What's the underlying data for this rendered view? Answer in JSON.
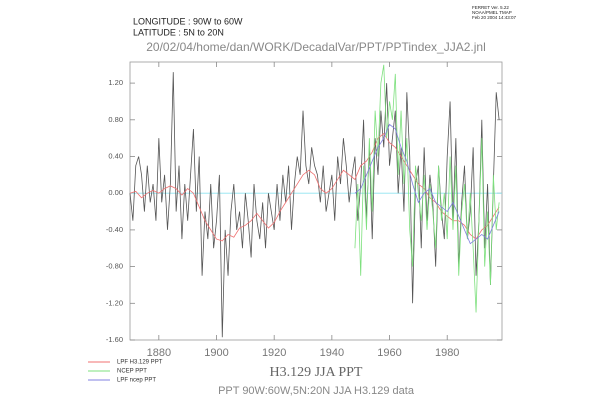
{
  "stamp": [
    "FERRET Ver. 5.22",
    "NOAA/PMEL TMAP",
    "Feb 20 2004 14:43:07"
  ],
  "header": [
    "LONGITUDE : 90W to 60W",
    "LATITUDE : 5N to 20N"
  ],
  "chart_data": {
    "type": "line",
    "subtitle_top": "20/02/04/home/dan/WORK/DecadalVar/PPT/PPTindex_JJA2.jnl",
    "title": "H3.129 JJA PPT",
    "subtitle": "PPT 90W:60W,5N:20N JJA H3.129 data",
    "xlim": [
      1870,
      1999
    ],
    "ylim": [
      -1.6,
      1.43
    ],
    "xticks": [
      1880,
      1900,
      1920,
      1940,
      1960,
      1980
    ],
    "yticks": [
      {
        "value": -1.6,
        "label": "-1.60"
      },
      {
        "value": -1.2,
        "label": "-1.20"
      },
      {
        "value": -0.8,
        "label": "-0.80"
      },
      {
        "value": -0.4,
        "label": "-0.40"
      },
      {
        "value": 0,
        "label": "0.00"
      },
      {
        "value": 0.4,
        "label": "0.40"
      },
      {
        "value": 0.8,
        "label": "0.80"
      },
      {
        "value": 1.2,
        "label": "1.20"
      }
    ],
    "zero_line_color": "#8fe3f0",
    "legend": "bottom-left",
    "series": [
      {
        "color": "#555555",
        "x": [
          1870,
          1871,
          1872,
          1873,
          1874,
          1875,
          1876,
          1877,
          1878,
          1879,
          1880,
          1881,
          1882,
          1883,
          1884,
          1885,
          1886,
          1887,
          1888,
          1889,
          1890,
          1891,
          1892,
          1893,
          1894,
          1895,
          1896,
          1897,
          1898,
          1899,
          1900,
          1901,
          1902,
          1903,
          1904,
          1905,
          1906,
          1907,
          1908,
          1909,
          1910,
          1911,
          1912,
          1913,
          1914,
          1915,
          1916,
          1917,
          1918,
          1919,
          1920,
          1921,
          1922,
          1923,
          1924,
          1925,
          1926,
          1927,
          1928,
          1929,
          1930,
          1931,
          1932,
          1933,
          1934,
          1935,
          1936,
          1937,
          1938,
          1939,
          1940,
          1941,
          1942,
          1943,
          1944,
          1945,
          1946,
          1947,
          1948,
          1949,
          1950,
          1951,
          1952,
          1953,
          1954,
          1955,
          1956,
          1957,
          1958,
          1959,
          1960,
          1961,
          1962,
          1963,
          1964,
          1965,
          1966,
          1967,
          1968,
          1969,
          1970,
          1971,
          1972,
          1973,
          1974,
          1975,
          1976,
          1977,
          1978,
          1979,
          1980,
          1981,
          1982,
          1983,
          1984,
          1985,
          1986,
          1987,
          1988,
          1989,
          1990,
          1991,
          1992,
          1993,
          1994,
          1995,
          1996,
          1997,
          1998
        ],
        "values": [
          0.0,
          -0.3,
          0.3,
          0.4,
          0.2,
          -0.2,
          0.3,
          -0.1,
          0.1,
          -0.3,
          0.6,
          -0.1,
          0.2,
          -0.4,
          0.1,
          1.32,
          -0.2,
          0.3,
          -0.5,
          0.1,
          -0.3,
          0.2,
          0.7,
          -0.2,
          0.4,
          -0.9,
          -0.2,
          -0.5,
          0.1,
          -0.6,
          -0.3,
          0.2,
          -1.57,
          -0.4,
          -0.9,
          -0.2,
          0.1,
          -0.4,
          -0.2,
          -0.6,
          0.0,
          -0.3,
          -0.7,
          0.1,
          -0.3,
          -0.5,
          -0.1,
          -0.6,
          0.0,
          -0.2,
          -0.4,
          0.1,
          -0.3,
          0.2,
          -0.1,
          0.3,
          -0.4,
          0.1,
          0.4,
          0.2,
          0.9,
          0.3,
          0.1,
          0.5,
          0.3,
          0.2,
          -0.1,
          0.3,
          -0.2,
          0.0,
          0.2,
          -0.3,
          0.4,
          0.1,
          0.6,
          0.3,
          -0.1,
          0.2,
          0.4,
          -0.3,
          0.1,
          0.8,
          -0.3,
          0.5,
          -0.5,
          0.6,
          0.2,
          0.9,
          0.5,
          1.2,
          0.3,
          0.6,
          0.9,
          0.0,
          0.5,
          -0.2,
          1.1,
          0.4,
          -1.2,
          0.1,
          0.3,
          -0.6,
          0.5,
          -0.3,
          0.2,
          -0.1,
          -0.8,
          0.3,
          -0.2,
          -0.5,
          0.4,
          1.0,
          -0.3,
          0.6,
          -0.8,
          -0.1,
          0.3,
          -0.5,
          -0.2,
          0.5,
          -0.9,
          -0.3,
          0.8,
          -0.6,
          0.1,
          -1.0,
          0.1,
          1.1,
          0.8
        ]
      },
      {
        "name": "LPF H3.129 PPT",
        "color": "#f07070",
        "x": [
          1870,
          1872,
          1874,
          1876,
          1878,
          1880,
          1882,
          1884,
          1886,
          1888,
          1890,
          1892,
          1894,
          1896,
          1898,
          1900,
          1902,
          1904,
          1906,
          1908,
          1910,
          1912,
          1914,
          1916,
          1918,
          1920,
          1922,
          1924,
          1926,
          1928,
          1930,
          1932,
          1934,
          1936,
          1938,
          1940,
          1942,
          1944,
          1946,
          1948,
          1950,
          1952,
          1954,
          1956,
          1958,
          1960,
          1962,
          1964,
          1966,
          1968,
          1970,
          1972,
          1974,
          1976,
          1978,
          1980,
          1982,
          1984,
          1986,
          1988,
          1990,
          1992,
          1994,
          1996,
          1998
        ],
        "values": [
          0.0,
          0.02,
          -0.05,
          0.0,
          0.03,
          0.0,
          0.05,
          0.08,
          0.05,
          -0.02,
          0.05,
          0.0,
          -0.15,
          -0.3,
          -0.4,
          -0.5,
          -0.52,
          -0.45,
          -0.48,
          -0.38,
          -0.35,
          -0.3,
          -0.22,
          -0.3,
          -0.38,
          -0.32,
          -0.2,
          -0.1,
          0.0,
          0.1,
          0.2,
          0.25,
          0.2,
          0.05,
          0.0,
          0.05,
          0.15,
          0.25,
          0.2,
          0.15,
          0.3,
          0.35,
          0.45,
          0.6,
          0.65,
          0.55,
          0.5,
          0.4,
          0.3,
          0.2,
          0.1,
          0.05,
          -0.05,
          -0.1,
          -0.2,
          -0.25,
          -0.3,
          -0.3,
          -0.35,
          -0.45,
          -0.5,
          -0.4,
          -0.35,
          -0.25,
          -0.15
        ]
      },
      {
        "name": "NCEP PPT",
        "color": "#7ee07e",
        "x": [
          1948,
          1949,
          1950,
          1951,
          1952,
          1953,
          1954,
          1955,
          1956,
          1957,
          1958,
          1959,
          1960,
          1961,
          1962,
          1963,
          1964,
          1965,
          1966,
          1967,
          1968,
          1969,
          1970,
          1971,
          1972,
          1973,
          1974,
          1975,
          1976,
          1977,
          1978,
          1979,
          1980,
          1981,
          1982,
          1983,
          1984,
          1985,
          1986,
          1987,
          1988,
          1989,
          1990,
          1991,
          1992,
          1993,
          1994,
          1995,
          1996,
          1997,
          1998
        ],
        "values": [
          -0.6,
          0.1,
          -0.9,
          0.3,
          -0.4,
          0.6,
          -0.2,
          0.9,
          0.4,
          1.2,
          1.4,
          0.6,
          1.0,
          0.8,
          1.3,
          0.2,
          0.9,
          0.1,
          0.6,
          -0.4,
          -0.8,
          0.3,
          0.0,
          -0.3,
          0.2,
          -0.4,
          0.1,
          -0.2,
          -0.6,
          0.3,
          -0.3,
          0.0,
          -0.5,
          0.4,
          -0.4,
          0.3,
          -0.9,
          -0.2,
          0.1,
          -0.5,
          0.0,
          -0.6,
          -1.3,
          -0.3,
          0.6,
          -0.8,
          -0.2,
          -1.0,
          0.2,
          -0.4,
          -0.1
        ]
      },
      {
        "name": "LPF ncep PPT",
        "color": "#8080e0",
        "x": [
          1948,
          1950,
          1952,
          1954,
          1956,
          1958,
          1960,
          1962,
          1964,
          1966,
          1968,
          1970,
          1972,
          1974,
          1976,
          1978,
          1980,
          1982,
          1984,
          1986,
          1988,
          1990,
          1992,
          1994,
          1996,
          1998
        ],
        "values": [
          0.0,
          0.05,
          0.2,
          0.35,
          0.5,
          0.6,
          0.75,
          0.7,
          0.5,
          0.35,
          0.1,
          -0.1,
          0.0,
          0.05,
          -0.1,
          -0.15,
          -0.2,
          -0.1,
          -0.25,
          -0.4,
          -0.55,
          -0.5,
          -0.45,
          -0.5,
          -0.35,
          -0.2
        ]
      }
    ]
  }
}
